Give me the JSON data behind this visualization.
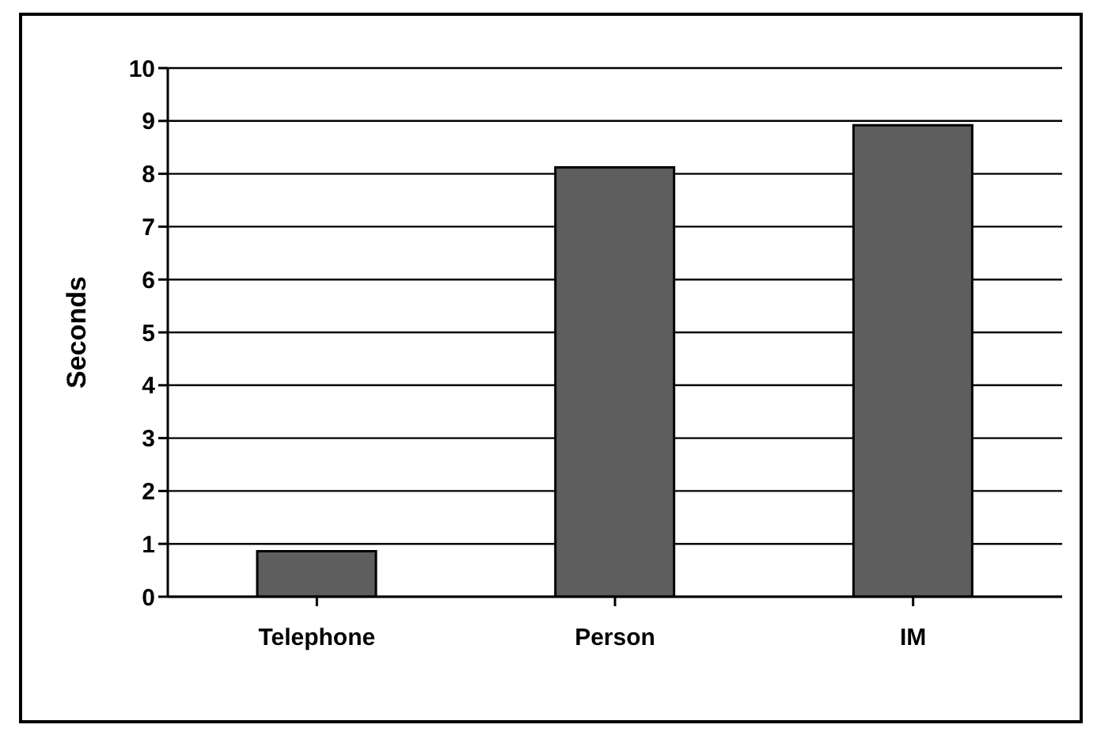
{
  "chart_data": {
    "type": "bar",
    "ylabel": "Seconds",
    "categories": [
      "Telephone",
      "Person",
      "IM"
    ],
    "values": [
      0.86,
      8.12,
      8.92
    ],
    "color": "#5e5e5e",
    "ylim": [
      0,
      10
    ],
    "yticks": [
      0,
      1,
      2,
      3,
      4,
      5,
      6,
      7,
      8,
      9,
      10
    ],
    "grid": "y",
    "legend": false
  }
}
